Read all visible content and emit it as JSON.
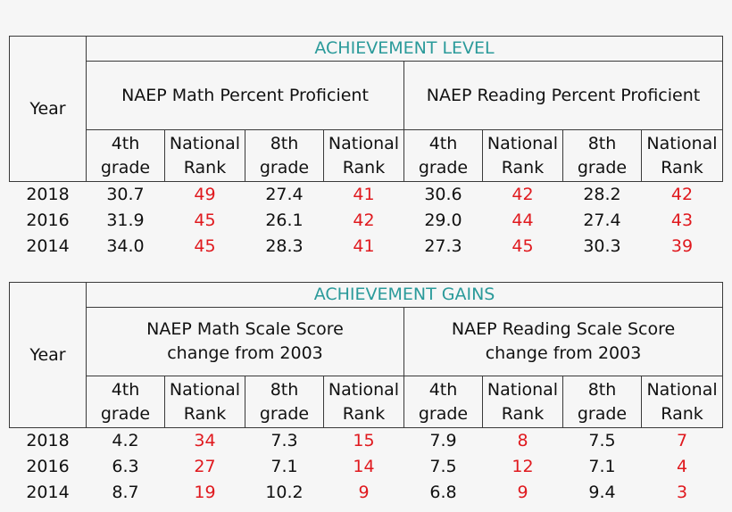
{
  "tables": [
    {
      "section_title": "ACHIEVEMENT LEVEL",
      "year_header": "Year",
      "groups": [
        {
          "title_line1": "NAEP Math Percent Proficient",
          "title_line2": ""
        },
        {
          "title_line1": "NAEP Reading Percent Proficient",
          "title_line2": ""
        }
      ],
      "subheaders": [
        {
          "line1": "4th",
          "line2": "grade"
        },
        {
          "line1": "National",
          "line2": "Rank"
        },
        {
          "line1": "8th",
          "line2": "grade"
        },
        {
          "line1": "National",
          "line2": "Rank"
        },
        {
          "line1": "4th",
          "line2": "grade"
        },
        {
          "line1": "National",
          "line2": "Rank"
        },
        {
          "line1": "8th",
          "line2": "grade"
        },
        {
          "line1": "National",
          "line2": "Rank"
        }
      ],
      "rows": [
        {
          "year": "2018",
          "values": [
            "30.7",
            "49",
            "27.4",
            "41",
            "30.6",
            "42",
            "28.2",
            "42"
          ]
        },
        {
          "year": "2016",
          "values": [
            "31.9",
            "45",
            "26.1",
            "42",
            "29.0",
            "44",
            "27.4",
            "43"
          ]
        },
        {
          "year": "2014",
          "values": [
            "34.0",
            "45",
            "28.3",
            "41",
            "27.3",
            "45",
            "30.3",
            "39"
          ]
        }
      ]
    },
    {
      "section_title": "ACHIEVEMENT GAINS",
      "year_header": "Year",
      "groups": [
        {
          "title_line1": "NAEP Math Scale Score",
          "title_line2": "change from 2003"
        },
        {
          "title_line1": "NAEP Reading Scale Score",
          "title_line2": "change from 2003"
        }
      ],
      "subheaders": [
        {
          "line1": "4th",
          "line2": "grade"
        },
        {
          "line1": "National",
          "line2": "Rank"
        },
        {
          "line1": "8th",
          "line2": "grade"
        },
        {
          "line1": "National",
          "line2": "Rank"
        },
        {
          "line1": "4th",
          "line2": "grade"
        },
        {
          "line1": "National",
          "line2": "Rank"
        },
        {
          "line1": "8th",
          "line2": "grade"
        },
        {
          "line1": "National",
          "line2": "Rank"
        }
      ],
      "rows": [
        {
          "year": "2018",
          "values": [
            "4.2",
            "34",
            "7.3",
            "15",
            "7.9",
            "8",
            "7.5",
            "7"
          ]
        },
        {
          "year": "2016",
          "values": [
            "6.3",
            "27",
            "7.1",
            "14",
            "7.5",
            "12",
            "7.1",
            "4"
          ]
        },
        {
          "year": "2014",
          "values": [
            "8.7",
            "19",
            "10.2",
            "9",
            "6.8",
            "9",
            "9.4",
            "3"
          ]
        }
      ]
    }
  ],
  "colors": {
    "section_title": "#2a9a9a",
    "rank_value": "#e0191e",
    "text": "#111111",
    "border": "#3a3a3a",
    "background": "#f6f6f6"
  }
}
